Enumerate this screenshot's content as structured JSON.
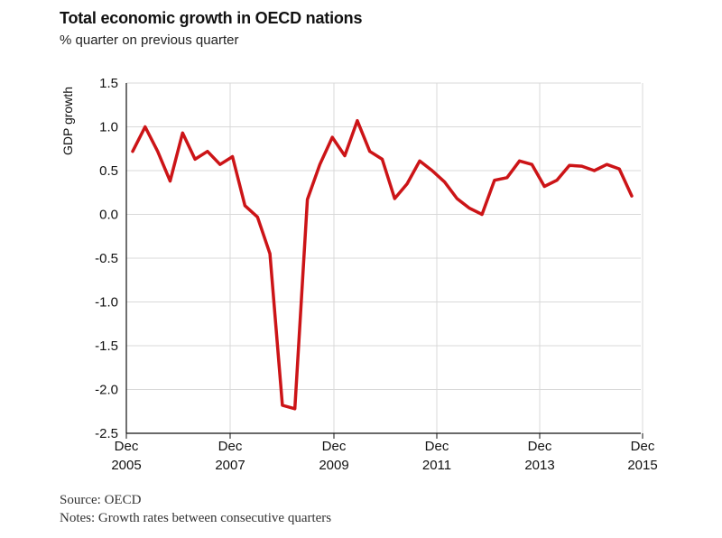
{
  "header": {
    "title": "Total economic growth in OECD nations",
    "subtitle": "% quarter on previous quarter"
  },
  "footer": {
    "source": "Source: OECD",
    "notes": "Notes: Growth rates between consecutive quarters"
  },
  "colors": {
    "line": "#cc1417",
    "grid": "#d9d9d9",
    "axis": "#111111"
  },
  "chart_data": {
    "type": "line",
    "title": "Total economic growth in OECD nations",
    "subtitle": "% quarter on previous quarter",
    "ylabel": "GDP growth",
    "xlabel": "",
    "ylim": [
      -2.5,
      1.5
    ],
    "yticks": [
      1.5,
      1.0,
      0.5,
      0.0,
      -0.5,
      -1.0,
      -1.5,
      -2.0,
      -2.5
    ],
    "ytick_labels": [
      "1.5",
      "1.0",
      "0.5",
      "0.0",
      "-0.5",
      "-1.0",
      "-1.5",
      "-2.0",
      "-2.5"
    ],
    "xticks": [
      {
        "line1": "Dec",
        "line2": "2005"
      },
      {
        "line1": "Dec",
        "line2": "2007"
      },
      {
        "line1": "Dec",
        "line2": "2009"
      },
      {
        "line1": "Dec",
        "line2": "2011"
      },
      {
        "line1": "Dec",
        "line2": "2013"
      },
      {
        "line1": "Dec",
        "line2": "2015"
      }
    ],
    "grid": true,
    "series": [
      {
        "values": [
          0.72,
          1.0,
          0.72,
          0.38,
          0.93,
          0.63,
          0.72,
          0.57,
          0.66,
          0.1,
          -0.03,
          -0.45,
          -2.18,
          -2.22,
          0.17,
          0.57,
          0.88,
          0.67,
          1.07,
          0.72,
          0.63,
          0.18,
          0.35,
          0.61,
          0.5,
          0.37,
          0.18,
          0.07,
          0.0,
          0.39,
          0.42,
          0.61,
          0.57,
          0.32,
          0.39,
          0.56,
          0.55,
          0.5,
          0.57,
          0.52,
          0.21
        ]
      }
    ]
  }
}
